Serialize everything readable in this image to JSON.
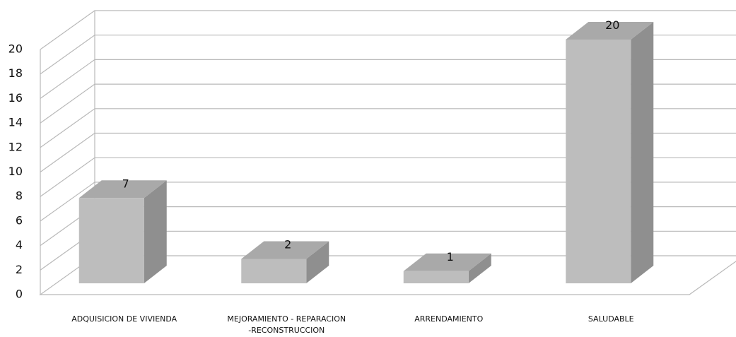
{
  "chart_data": {
    "type": "bar",
    "categories": [
      "ADQUISICION DE VIVIENDA",
      "MEJORAMIENTO - REPARACION -RECONSTRUCCION",
      "ARRENDAMIENTO",
      "SALUDABLE"
    ],
    "category_lines": [
      [
        "ADQUISICION DE VIVIENDA"
      ],
      [
        "MEJORAMIENTO - REPARACION",
        "-RECONSTRUCCION"
      ],
      [
        "ARRENDAMIENTO"
      ],
      [
        "SALUDABLE"
      ]
    ],
    "values": [
      7,
      2,
      1,
      20
    ],
    "data_labels": [
      "7",
      "2",
      "1",
      "20"
    ],
    "y_ticks": [
      0,
      2,
      4,
      6,
      8,
      10,
      12,
      14,
      16,
      18,
      20
    ],
    "ylim": [
      0,
      20
    ],
    "title": "",
    "xlabel": "",
    "ylabel": "",
    "grid": true,
    "legend": "none",
    "style": "3d-column",
    "colors": {
      "bar_front": "#bdbdbd",
      "bar_side": "#8f8f8f",
      "bar_top": "#a9a9a9",
      "grid": "#b9b9b9",
      "text": "#111111"
    }
  }
}
